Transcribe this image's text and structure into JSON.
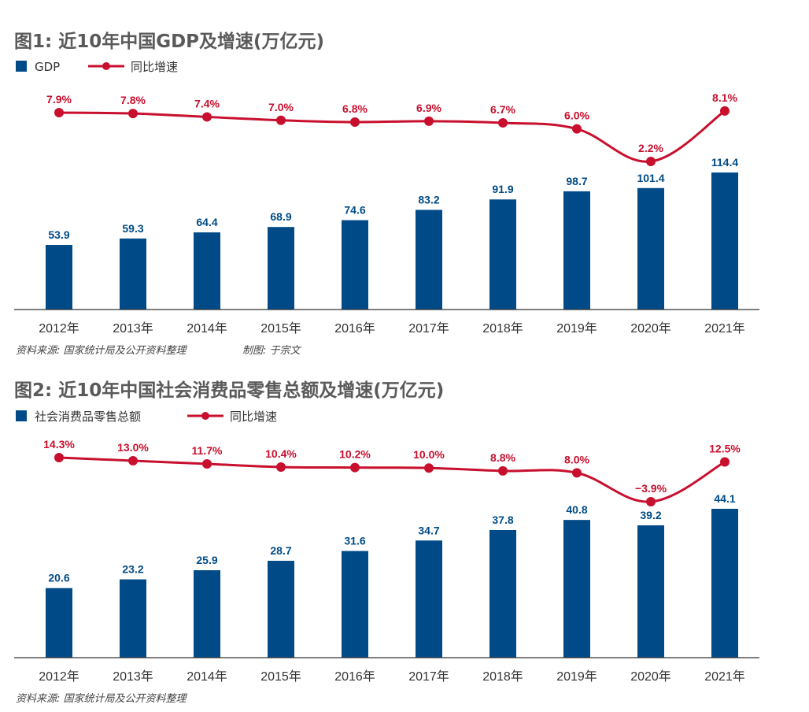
{
  "colors": {
    "bar": "#004b87",
    "line": "#c8102e",
    "axis": "#333333"
  },
  "chart_data": [
    {
      "type": "bar",
      "title": "图1: 近10年中国GDP及增速(万亿元)",
      "categories": [
        "2012年",
        "2013年",
        "2014年",
        "2015年",
        "2016年",
        "2017年",
        "2018年",
        "2019年",
        "2020年",
        "2021年"
      ],
      "series": [
        {
          "name": "GDP",
          "type": "bar",
          "values": [
            53.9,
            59.3,
            64.4,
            68.9,
            74.6,
            83.2,
            91.9,
            98.7,
            101.4,
            114.4
          ],
          "labels": [
            "53.9",
            "59.3",
            "64.4",
            "68.9",
            "74.6",
            "83.2",
            "91.9",
            "98.7",
            "101.4",
            "114.4"
          ]
        },
        {
          "name": "同比增速",
          "type": "line",
          "values": [
            7.9,
            7.8,
            7.4,
            7.0,
            6.8,
            6.9,
            6.7,
            6.0,
            2.2,
            8.1
          ],
          "labels": [
            "7.9%",
            "7.8%",
            "7.4%",
            "7.0%",
            "6.8%",
            "6.9%",
            "6.7%",
            "6.0%",
            "2.2%",
            "8.1%"
          ]
        }
      ],
      "source": "资料来源: 国家统计局及公开资料整理",
      "credit": "制图: 于宗文",
      "legend_position": "top-left",
      "grid": false
    },
    {
      "type": "bar",
      "title": "图2: 近10年中国社会消费品零售总额及增速(万亿元)",
      "categories": [
        "2012年",
        "2013年",
        "2014年",
        "2015年",
        "2016年",
        "2017年",
        "2018年",
        "2019年",
        "2020年",
        "2021年"
      ],
      "series": [
        {
          "name": "社会消费品零售总额",
          "type": "bar",
          "values": [
            20.6,
            23.2,
            25.9,
            28.7,
            31.6,
            34.7,
            37.8,
            40.8,
            39.2,
            44.1
          ],
          "labels": [
            "20.6",
            "23.2",
            "25.9",
            "28.7",
            "31.6",
            "34.7",
            "37.8",
            "40.8",
            "39.2",
            "44.1"
          ]
        },
        {
          "name": "同比增速",
          "type": "line",
          "values": [
            14.3,
            13.0,
            11.7,
            10.4,
            10.2,
            10.0,
            8.8,
            8.0,
            -3.9,
            12.5
          ],
          "labels": [
            "14.3%",
            "13.0%",
            "11.7%",
            "10.4%",
            "10.2%",
            "10.0%",
            "8.8%",
            "8.0%",
            "−3.9%",
            "12.5%"
          ]
        }
      ],
      "source": "资料来源: 国家统计局及公开资料整理",
      "credit": "",
      "legend_position": "top-left",
      "grid": false
    }
  ]
}
